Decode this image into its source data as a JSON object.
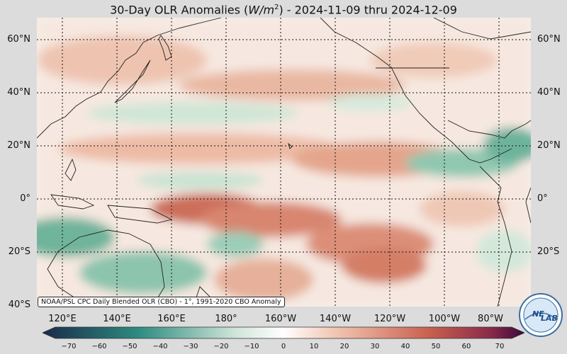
{
  "title": {
    "prefix": "30-Day OLR Anomalies (",
    "unit": "W/m",
    "unit_power": "2",
    "suffix": ") - 2024-11-09 thru 2024-12-09"
  },
  "map": {
    "type": "geographic anomaly map",
    "lat_labels": [
      "60°N",
      "40°N",
      "20°N",
      "0°",
      "20°S",
      "40°S"
    ],
    "lon_labels": [
      "120°E",
      "140°E",
      "160°E",
      "180°",
      "160°W",
      "140°W",
      "120°W",
      "100°W",
      "80°W"
    ],
    "source_note": "NOAA/PSL CPC Daily Blended OLR (CBO) - 1°, 1991-2020 CBO Anomaly"
  },
  "colorbar": {
    "ticks": [
      "−70",
      "−60",
      "−50",
      "−40",
      "−30",
      "−20",
      "−10",
      "0",
      "10",
      "20",
      "30",
      "40",
      "50",
      "60",
      "70"
    ],
    "colors": {
      "min": "#1a2a4a",
      "neg_mid": "#2e8c80",
      "neg_light": "#cfe5d8",
      "zero": "#ffffff",
      "pos_light": "#f2c9b6",
      "pos_mid": "#c9614e",
      "pos_dark": "#8a2a4a",
      "max": "#3a0a3a"
    }
  },
  "logo": {
    "text_top": "NE",
    "text_bottom": "LAB",
    "icon": "noaa-psl-logo-icon"
  }
}
